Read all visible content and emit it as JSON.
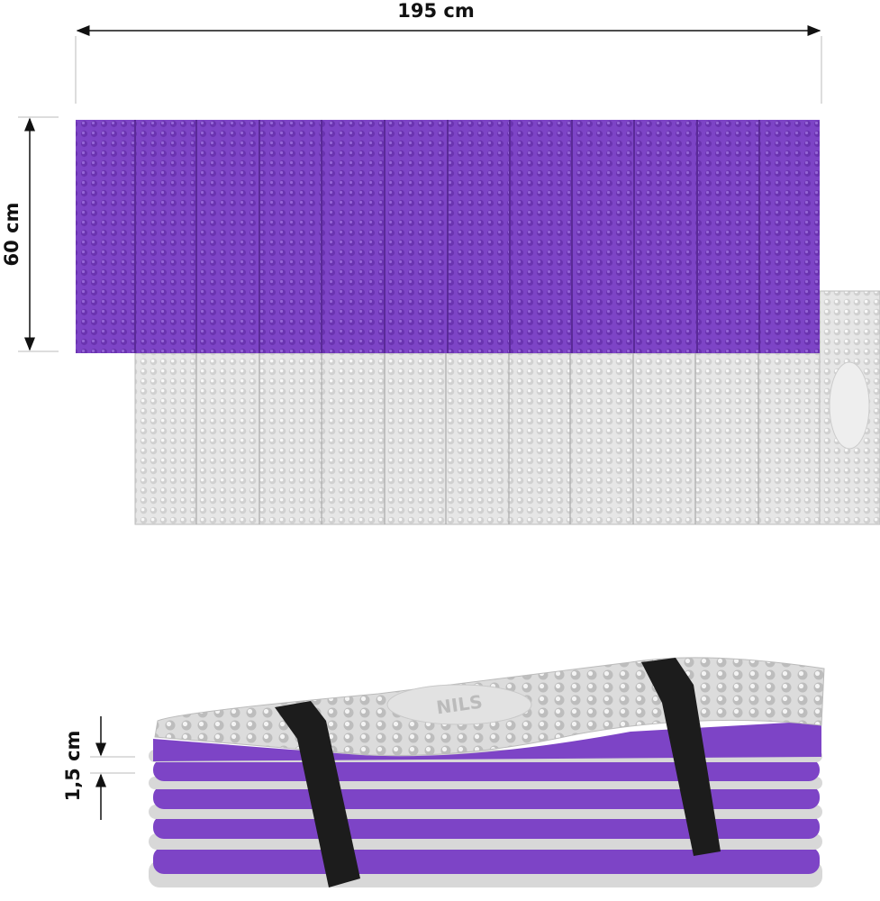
{
  "dimensions": {
    "length": "195 cm",
    "width": "60 cm",
    "thickness": "1,5 cm"
  },
  "logo": "NILS"
}
